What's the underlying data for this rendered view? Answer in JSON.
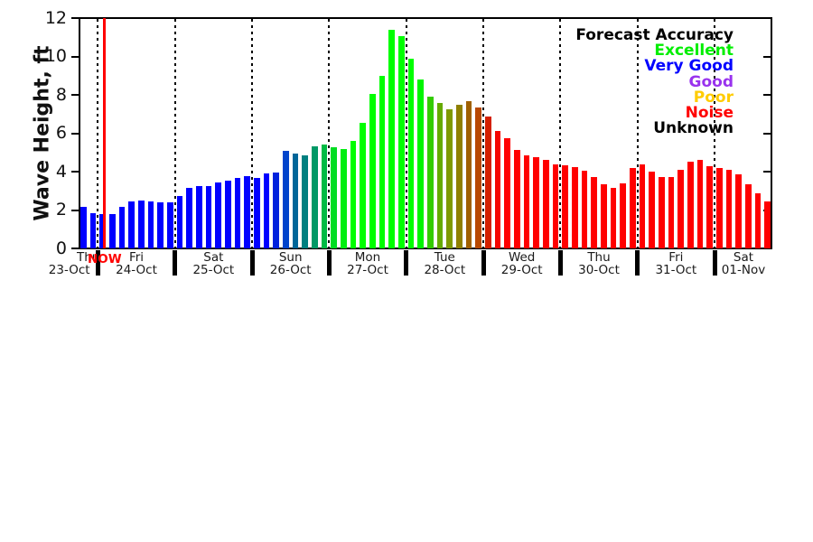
{
  "chart_data": {
    "type": "bar",
    "title": "",
    "ylabel": "Wave Height, ft",
    "xlabel": "",
    "ylim": [
      0,
      12
    ],
    "y_ticks": [
      0,
      2,
      4,
      6,
      8,
      10,
      12
    ],
    "grid": "vertical dotted day-boundary lines",
    "now_marker": {
      "label": "NOW",
      "color": "#ff0000",
      "after_bar_index": 2
    },
    "legend": {
      "title": "Forecast Accuracy",
      "position": "top-right",
      "entries": [
        {
          "label": "Excellent",
          "color": "#00ee00"
        },
        {
          "label": "Very Good",
          "color": "#0000ff"
        },
        {
          "label": "Good",
          "color": "#9933ee"
        },
        {
          "label": "Poor",
          "color": "#ffcc00"
        },
        {
          "label": "Noise",
          "color": "#ff0000"
        },
        {
          "label": "Unknown",
          "color": "#000000"
        }
      ]
    },
    "days": [
      {
        "name": "Thu",
        "date": "23-Oct",
        "values": [
          2.15,
          1.85
        ],
        "colors": [
          "#0000ff",
          "#0000ff"
        ]
      },
      {
        "name": "Fri",
        "date": "24-Oct",
        "values": [
          1.8,
          1.8,
          2.15,
          2.45,
          2.5,
          2.45,
          2.4,
          2.4
        ],
        "colors": [
          "#0000ff",
          "#0000ff",
          "#0000ff",
          "#0000ff",
          "#0000ff",
          "#0000ff",
          "#0000ff",
          "#0000ff"
        ]
      },
      {
        "name": "Sat",
        "date": "25-Oct",
        "values": [
          2.75,
          3.15,
          3.25,
          3.25,
          3.45,
          3.55,
          3.65,
          3.75
        ],
        "colors": [
          "#0000ff",
          "#0000ff",
          "#0000ff",
          "#0000ff",
          "#0000ff",
          "#0000ff",
          "#0000ff",
          "#0000ff"
        ]
      },
      {
        "name": "Sun",
        "date": "26-Oct",
        "values": [
          3.65,
          3.9,
          3.95,
          5.1,
          4.95,
          4.85,
          5.3,
          5.4
        ],
        "colors": [
          "#0000ff",
          "#0000ff",
          "#0022dd",
          "#0044cc",
          "#006699",
          "#008080",
          "#009966",
          "#00bb44"
        ]
      },
      {
        "name": "Mon",
        "date": "27-Oct",
        "values": [
          5.25,
          5.2,
          5.6,
          6.55,
          8.05,
          9.0,
          11.4,
          11.05
        ],
        "colors": [
          "#00dd22",
          "#00ee11",
          "#00ff00",
          "#00ff00",
          "#00ff00",
          "#00ff00",
          "#00ff00",
          "#00ff00"
        ]
      },
      {
        "name": "Tue",
        "date": "28-Oct",
        "values": [
          9.9,
          8.8,
          7.9,
          7.6,
          7.25,
          7.5,
          7.65,
          7.35
        ],
        "colors": [
          "#00ff00",
          "#00f500",
          "#33cc00",
          "#66aa00",
          "#7f9900",
          "#8f8000",
          "#a06000",
          "#b84800"
        ]
      },
      {
        "name": "Wed",
        "date": "29-Oct",
        "values": [
          6.85,
          6.1,
          5.75,
          5.15,
          4.85,
          4.75,
          4.6,
          4.4
        ],
        "colors": [
          "#d42000",
          "#f50500",
          "#ff0000",
          "#ff0000",
          "#ff0000",
          "#ff0000",
          "#ff0000",
          "#ff0000"
        ]
      },
      {
        "name": "Thu",
        "date": "30-Oct",
        "values": [
          4.35,
          4.25,
          4.05,
          3.7,
          3.35,
          3.15,
          3.4,
          4.2
        ],
        "colors": [
          "#ff0000",
          "#ff0000",
          "#ff0000",
          "#ff0000",
          "#ff0000",
          "#ff0000",
          "#ff0000",
          "#ff0000"
        ]
      },
      {
        "name": "Fri",
        "date": "31-Oct",
        "values": [
          4.4,
          4.0,
          3.7,
          3.7,
          4.1,
          4.5,
          4.6,
          4.3
        ],
        "colors": [
          "#ff0000",
          "#ff0000",
          "#ff0000",
          "#ff0000",
          "#ff0000",
          "#ff0000",
          "#ff0000",
          "#ff0000"
        ]
      },
      {
        "name": "Sat",
        "date": "01-Nov",
        "values": [
          4.2,
          4.1,
          3.85,
          3.35,
          2.85,
          2.45
        ],
        "colors": [
          "#ff0000",
          "#ff0000",
          "#ff0000",
          "#ff0000",
          "#ff0000",
          "#ff0000"
        ]
      }
    ]
  }
}
